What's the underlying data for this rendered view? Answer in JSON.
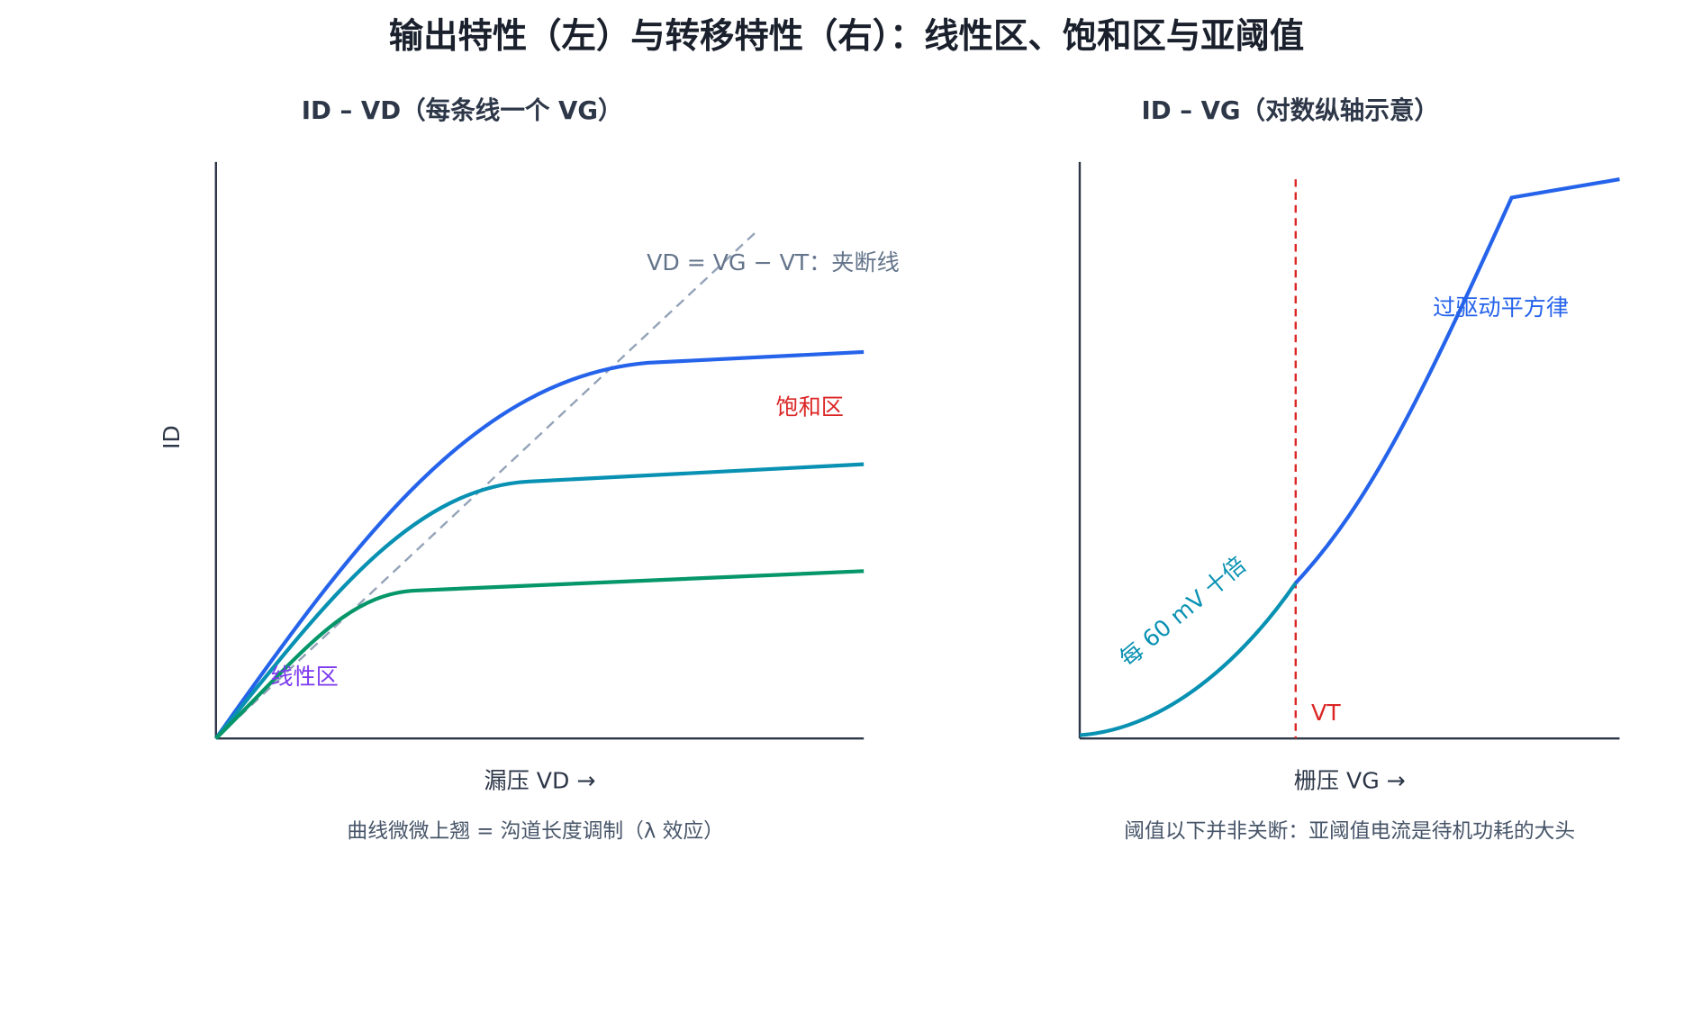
{
  "title": "输出特性（左）与转移特性（右）：线性区、饱和区与亚阈值",
  "left_panel": {
    "title": "ID – VD（每条线一个 VG）",
    "y_label": "ID",
    "x_label": "漏压 VD →",
    "note": "曲线微微上翘 = 沟道长度调制（λ 效应）",
    "annotations": {
      "pinch_off": "VD = VG − VT：夹断线",
      "saturation": "饱和区",
      "linear": "线性区"
    }
  },
  "right_panel": {
    "title": "ID – VG（对数纵轴示意）",
    "x_label": "栅压 VG →",
    "note": "阈值以下并非关断：亚阈值电流是待机功耗的大头",
    "annotations": {
      "overdrive": "过驱动平方律",
      "threshold": "VT",
      "subthreshold": "每 60 mV 十倍"
    }
  }
}
